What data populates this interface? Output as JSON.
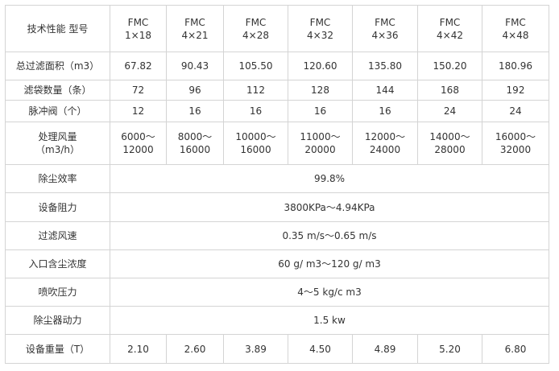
{
  "table": {
    "header": {
      "label": "技术性能 型号",
      "models": [
        [
          "FMC",
          "1×18"
        ],
        [
          "FMC",
          "4×21"
        ],
        [
          "FMC",
          "4×28"
        ],
        [
          "FMC",
          "4×32"
        ],
        [
          "FMC",
          "4×36"
        ],
        [
          "FMC",
          "4×42"
        ],
        [
          "FMC",
          "4×48"
        ]
      ]
    },
    "rows": [
      {
        "label": [
          "总过滤面积（m3）"
        ],
        "values": [
          [
            "67.82"
          ],
          [
            "90.43"
          ],
          [
            "105.50"
          ],
          [
            "120.60"
          ],
          [
            "135.80"
          ],
          [
            "150.20"
          ],
          [
            "180.96"
          ]
        ]
      },
      {
        "label": [
          "滤袋数量（条）"
        ],
        "values": [
          [
            "72"
          ],
          [
            "96"
          ],
          [
            "112"
          ],
          [
            "128"
          ],
          [
            "144"
          ],
          [
            "168"
          ],
          [
            "192"
          ]
        ]
      },
      {
        "label": [
          "脉冲阀（个）"
        ],
        "values": [
          [
            "12"
          ],
          [
            "16"
          ],
          [
            "16"
          ],
          [
            "16"
          ],
          [
            "16"
          ],
          [
            "24"
          ],
          [
            "24"
          ]
        ]
      },
      {
        "label": [
          "处理风量",
          "（m3/h）"
        ],
        "values": [
          [
            "6000～",
            "12000"
          ],
          [
            "8000～",
            "16000"
          ],
          [
            "10000～",
            "16000"
          ],
          [
            "11000～",
            "20000"
          ],
          [
            "12000～",
            "24000"
          ],
          [
            "14000～",
            "28000"
          ],
          [
            "16000～",
            "32000"
          ]
        ]
      },
      {
        "label": [
          "除尘效率"
        ],
        "span": "99.8%"
      },
      {
        "label": [
          "设备阻力"
        ],
        "span": "3800KPa～4.94KPa"
      },
      {
        "label": [
          "过滤风速"
        ],
        "span": "0.35 m/s～0.65 m/s"
      },
      {
        "label": [
          "入口含尘浓度"
        ],
        "span": "60 g/ m3～120 g/ m3"
      },
      {
        "label": [
          "喷吹压力"
        ],
        "span": "4～5 kg/c m3"
      },
      {
        "label": [
          "除尘器动力"
        ],
        "span": "1.5 kw"
      },
      {
        "label": [
          "设备重量（T）"
        ],
        "values": [
          [
            "2.10"
          ],
          [
            "2.60"
          ],
          [
            "3.89"
          ],
          [
            "4.50"
          ],
          [
            "4.89"
          ],
          [
            "5.20"
          ],
          [
            "6.80"
          ]
        ]
      }
    ]
  }
}
